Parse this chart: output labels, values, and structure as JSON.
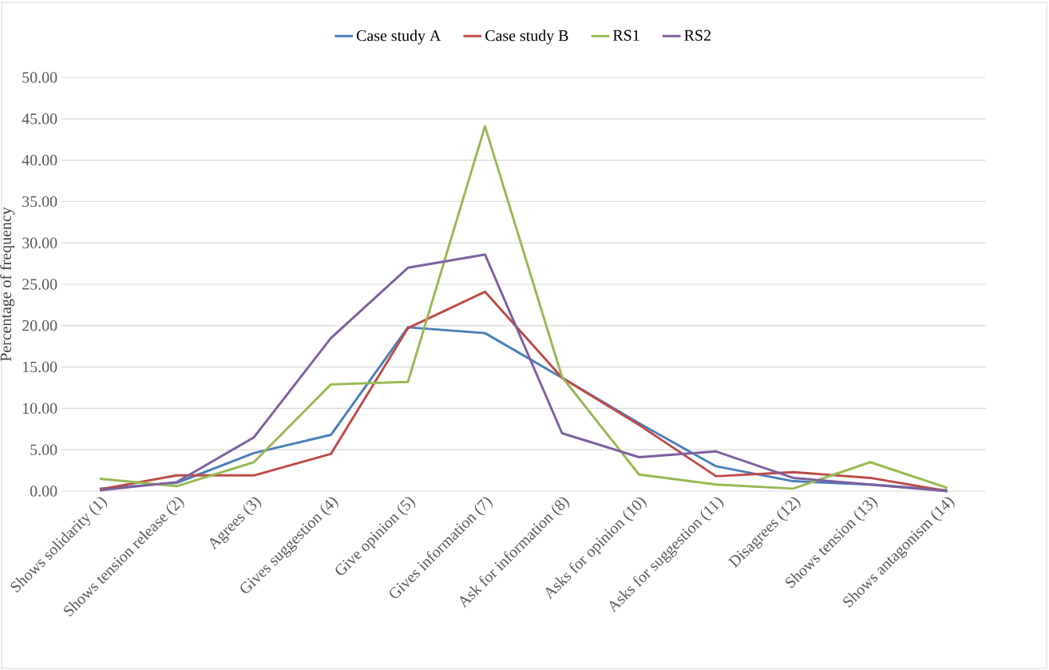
{
  "chart_data": {
    "type": "line",
    "ylabel": "Percentage of frequency",
    "categories": [
      "Shows solidarity (1)",
      "Shows tension release (2)",
      "Agrees (3)",
      "Gives suggestion (4)",
      "Give opinion (5)",
      "Gives information (7)",
      "Ask for information (8)",
      "Asks for opinion (10)",
      "Asks for suggestion (11)",
      "Disagrees (12)",
      "Shows tension (13)",
      "Shows antagonism (14)"
    ],
    "series": [
      {
        "name": "Case study A",
        "color": "#4a7ebb",
        "values": [
          0.3,
          1.0,
          4.6,
          6.8,
          19.8,
          19.1,
          13.7,
          8.2,
          3.0,
          1.2,
          0.8,
          0.1
        ]
      },
      {
        "name": "Case study B",
        "color": "#be4b48",
        "values": [
          0.2,
          1.9,
          1.9,
          4.5,
          19.7,
          24.1,
          13.7,
          8.0,
          1.8,
          2.3,
          1.6,
          0.0
        ]
      },
      {
        "name": "RS1",
        "color": "#98b954",
        "values": [
          1.5,
          0.6,
          3.5,
          12.9,
          13.2,
          44.1,
          13.8,
          2.0,
          0.8,
          0.3,
          3.5,
          0.4
        ]
      },
      {
        "name": "RS2",
        "color": "#7d60a0",
        "values": [
          0.1,
          1.1,
          6.5,
          18.5,
          27.0,
          28.6,
          7.0,
          4.1,
          4.8,
          1.6,
          0.8,
          0.0
        ]
      }
    ],
    "ylim": [
      0,
      50
    ],
    "yticks": [
      {
        "value": 0,
        "label": "0.00"
      },
      {
        "value": 5,
        "label": "5.00"
      },
      {
        "value": 10,
        "label": "10.00"
      },
      {
        "value": 15,
        "label": "15.00"
      },
      {
        "value": 20,
        "label": "20.00"
      },
      {
        "value": 25,
        "label": "25.00"
      },
      {
        "value": 30,
        "label": "30.00"
      },
      {
        "value": 35,
        "label": "35.00"
      },
      {
        "value": 40,
        "label": "40.00"
      },
      {
        "value": 45,
        "label": "45.00"
      },
      {
        "value": 50,
        "label": "50.00"
      }
    ],
    "grid": "y",
    "legend": "top",
    "marker": "none",
    "line_style": "solid"
  }
}
